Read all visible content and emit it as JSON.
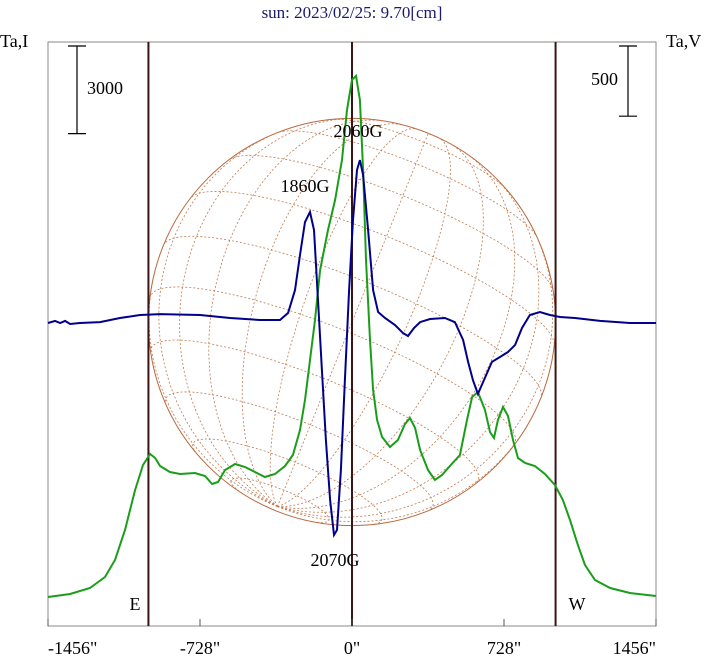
{
  "chart_data": {
    "type": "line",
    "title": "sun: 2023/02/25: 9.70[cm]",
    "y_label": "Ta,I",
    "y2_label": "Ta,V",
    "xlim": [
      -1456,
      1456
    ],
    "xticks": [
      {
        "value": -1456,
        "label": "-1456\""
      },
      {
        "value": -728,
        "label": "-728\""
      },
      {
        "value": 0,
        "label": "0\""
      },
      {
        "value": 728,
        "label": "728\""
      },
      {
        "value": 1456,
        "label": "1456\""
      }
    ],
    "ylim": [
      0,
      20000
    ],
    "y2lim": [
      -2080,
      2080
    ],
    "vlines": [
      -975,
      0,
      975
    ],
    "scale_bars": [
      {
        "value": 3000,
        "axis": "y"
      },
      {
        "value": 500,
        "axis": "y2"
      }
    ],
    "annotations": [
      "2060G",
      "1860G",
      "2070G",
      "E",
      "W"
    ],
    "series": [
      {
        "name": "Ta,I",
        "color": "#1a9e1a",
        "x": [
          -1456,
          -1350,
          -1255,
          -1183,
          -1135,
          -1087,
          -1039,
          -1001,
          -967,
          -943,
          -919,
          -872,
          -824,
          -752,
          -704,
          -670,
          -642,
          -608,
          -560,
          -512,
          -465,
          -417,
          -369,
          -321,
          -283,
          -249,
          -225,
          -201,
          -177,
          -153,
          -115,
          -81,
          -48,
          -24,
          0,
          19,
          38,
          53,
          67,
          86,
          101,
          120,
          144,
          182,
          220,
          254,
          278,
          302,
          326,
          364,
          397,
          431,
          469,
          517,
          551,
          575,
          603,
          637,
          661,
          680,
          699,
          723,
          747,
          771,
          795,
          829,
          876,
          924,
          972,
          1010,
          1044,
          1082,
          1116,
          1164,
          1236,
          1331,
          1456
        ],
        "values": [
          993,
          1096,
          1302,
          1678,
          2261,
          3288,
          4658,
          5514,
          5891,
          5754,
          5480,
          5275,
          5206,
          5240,
          5138,
          4864,
          4932,
          5343,
          5549,
          5446,
          5275,
          5103,
          5206,
          5480,
          5857,
          6713,
          7741,
          9111,
          10481,
          12193,
          13563,
          14591,
          15961,
          17673,
          18701,
          18838,
          18016,
          15618,
          12536,
          9796,
          8083,
          7056,
          6473,
          6131,
          6371,
          6919,
          7124,
          6782,
          6028,
          5343,
          5001,
          5172,
          5480,
          5857,
          7056,
          7843,
          8015,
          7398,
          6645,
          6439,
          7056,
          7501,
          7193,
          6371,
          5754,
          5583,
          5480,
          5206,
          4829,
          4316,
          3631,
          2774,
          2089,
          1576,
          1302,
          1130,
          1028
        ]
      },
      {
        "name": "Ta,V",
        "color": "#00008b",
        "axis": "y2",
        "x": [
          -1456,
          -1422,
          -1398,
          -1374,
          -1350,
          -1303,
          -1207,
          -1111,
          -1015,
          -919,
          -728,
          -584,
          -441,
          -345,
          -306,
          -273,
          -249,
          -225,
          -201,
          -182,
          -163,
          -144,
          -125,
          -105,
          -86,
          -72,
          -53,
          -34,
          -14,
          5,
          24,
          38,
          53,
          77,
          101,
          125,
          158,
          206,
          244,
          268,
          297,
          326,
          374,
          445,
          493,
          532,
          556,
          579,
          603,
          632,
          670,
          709,
          747,
          781,
          814,
          852,
          900,
          948,
          996,
          1068,
          1188,
          1331,
          1456
        ],
        "values": [
          78,
          93,
          78,
          93,
          71,
          78,
          85,
          114,
          135,
          142,
          135,
          114,
          100,
          100,
          150,
          313,
          563,
          798,
          869,
          741,
          242,
          -256,
          -755,
          -1182,
          -1432,
          -1396,
          -969,
          -328,
          313,
          812,
          1168,
          1239,
          1133,
          741,
          313,
          157,
          114,
          64,
          7,
          -14,
          43,
          85,
          107,
          114,
          85,
          -43,
          -199,
          -328,
          -427,
          -328,
          -199,
          -164,
          -128,
          -78,
          43,
          135,
          157,
          135,
          121,
          114,
          93,
          78,
          78
        ]
      }
    ]
  }
}
